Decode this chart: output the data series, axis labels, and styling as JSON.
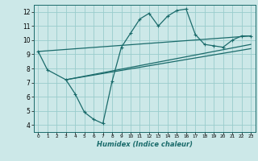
{
  "xlabel": "Humidex (Indice chaleur)",
  "background_color": "#cce8e8",
  "grid_color": "#99cccc",
  "line_color": "#1a6b6b",
  "xlim": [
    -0.5,
    23.5
  ],
  "ylim": [
    3.5,
    12.5
  ],
  "xticks": [
    0,
    1,
    2,
    3,
    4,
    5,
    6,
    7,
    8,
    9,
    10,
    11,
    12,
    13,
    14,
    15,
    16,
    17,
    18,
    19,
    20,
    21,
    22,
    23
  ],
  "yticks": [
    4,
    5,
    6,
    7,
    8,
    9,
    10,
    11,
    12
  ],
  "series": [
    [
      0,
      9.2
    ],
    [
      1,
      7.9
    ],
    [
      3,
      7.2
    ],
    [
      4,
      6.2
    ],
    [
      5,
      4.9
    ],
    [
      6,
      4.4
    ],
    [
      7,
      4.1
    ],
    [
      8,
      7.1
    ],
    [
      9,
      9.5
    ],
    [
      10,
      10.5
    ],
    [
      11,
      11.5
    ],
    [
      12,
      11.9
    ],
    [
      13,
      11.0
    ],
    [
      14,
      11.7
    ],
    [
      15,
      12.1
    ],
    [
      16,
      12.2
    ],
    [
      17,
      10.4
    ],
    [
      18,
      9.7
    ],
    [
      19,
      9.6
    ],
    [
      20,
      9.5
    ],
    [
      21,
      10.0
    ],
    [
      22,
      10.3
    ],
    [
      23,
      10.3
    ]
  ],
  "line2": [
    [
      0,
      9.2
    ],
    [
      23,
      10.3
    ]
  ],
  "line3": [
    [
      3,
      7.2
    ],
    [
      23,
      9.7
    ]
  ],
  "line4": [
    [
      3,
      7.2
    ],
    [
      23,
      9.4
    ]
  ]
}
